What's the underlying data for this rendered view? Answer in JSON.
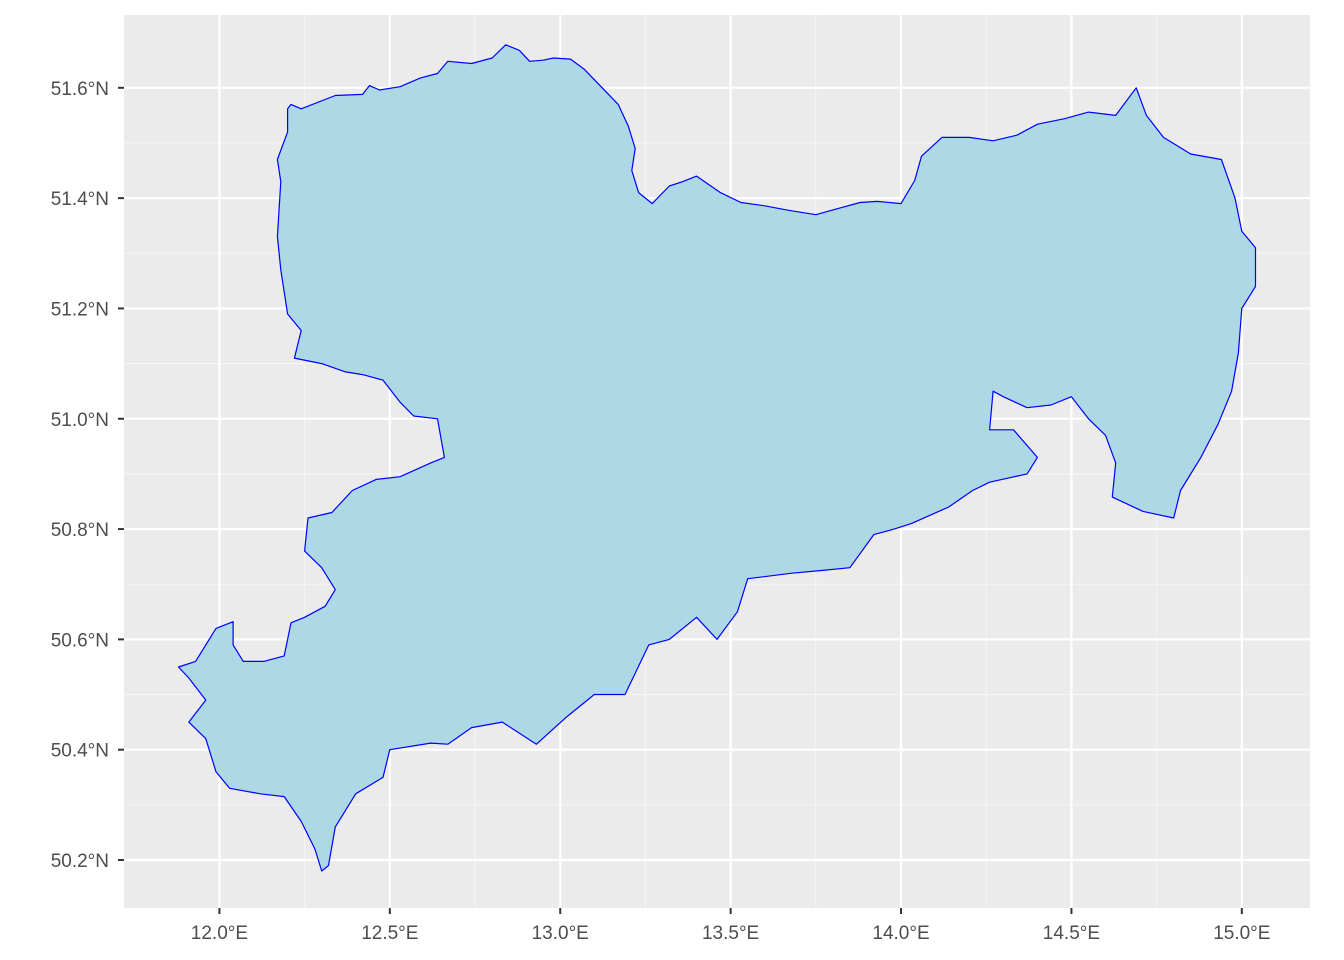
{
  "chart_data": {
    "type": "map",
    "region": "Sachsen",
    "fill_color": "#add8e6",
    "border_color": "#0000ff",
    "panel_color": "#ebebeb",
    "grid": true,
    "x_axis": {
      "unit": "longitude",
      "ticks": [
        12.0,
        12.5,
        13.0,
        13.5,
        14.0,
        14.5,
        15.0
      ],
      "tick_labels": [
        "12.0°E",
        "12.5°E",
        "13.0°E",
        "13.5°E",
        "14.0°E",
        "14.5°E",
        "15.0°E"
      ],
      "range": [
        11.72,
        15.2
      ]
    },
    "y_axis": {
      "unit": "latitude",
      "ticks": [
        50.2,
        50.4,
        50.6,
        50.8,
        51.0,
        51.2,
        51.4,
        51.6
      ],
      "tick_labels": [
        "50.2°N",
        "50.4°N",
        "50.6°N",
        "50.8°N",
        "51.0°N",
        "51.2°N",
        "51.4°N",
        "51.6°N"
      ],
      "range": [
        50.113,
        51.732
      ]
    },
    "outline": [
      [
        12.2,
        51.562
      ],
      [
        12.21,
        51.57
      ],
      [
        12.24,
        51.562
      ],
      [
        12.34,
        51.586
      ],
      [
        12.42,
        51.588
      ],
      [
        12.44,
        51.604
      ],
      [
        12.47,
        51.596
      ],
      [
        12.53,
        51.602
      ],
      [
        12.59,
        51.618
      ],
      [
        12.64,
        51.626
      ],
      [
        12.67,
        51.648
      ],
      [
        12.74,
        51.644
      ],
      [
        12.8,
        51.654
      ],
      [
        12.84,
        51.678
      ],
      [
        12.88,
        51.668
      ],
      [
        12.91,
        51.648
      ],
      [
        12.95,
        51.65
      ],
      [
        12.98,
        51.654
      ],
      [
        13.03,
        51.652
      ],
      [
        13.07,
        51.634
      ],
      [
        13.12,
        51.602
      ],
      [
        13.17,
        51.57
      ],
      [
        13.2,
        51.53
      ],
      [
        13.22,
        51.49
      ],
      [
        13.21,
        51.45
      ],
      [
        13.23,
        51.41
      ],
      [
        13.27,
        51.39
      ],
      [
        13.32,
        51.422
      ],
      [
        13.36,
        51.43
      ],
      [
        13.4,
        51.44
      ],
      [
        13.47,
        51.41
      ],
      [
        13.53,
        51.392
      ],
      [
        13.6,
        51.386
      ],
      [
        13.67,
        51.378
      ],
      [
        13.75,
        51.37
      ],
      [
        13.82,
        51.382
      ],
      [
        13.88,
        51.392
      ],
      [
        13.93,
        51.394
      ],
      [
        14.0,
        51.39
      ],
      [
        14.04,
        51.432
      ],
      [
        14.06,
        51.476
      ],
      [
        14.12,
        51.51
      ],
      [
        14.2,
        51.51
      ],
      [
        14.27,
        51.504
      ],
      [
        14.34,
        51.514
      ],
      [
        14.4,
        51.534
      ],
      [
        14.48,
        51.544
      ],
      [
        14.55,
        51.556
      ],
      [
        14.63,
        51.55
      ],
      [
        14.69,
        51.6
      ],
      [
        14.72,
        51.55
      ],
      [
        14.77,
        51.51
      ],
      [
        14.85,
        51.48
      ],
      [
        14.94,
        51.47
      ],
      [
        14.98,
        51.4
      ],
      [
        15.0,
        51.34
      ],
      [
        15.04,
        51.31
      ],
      [
        15.04,
        51.24
      ],
      [
        15.0,
        51.2
      ],
      [
        14.99,
        51.12
      ],
      [
        14.97,
        51.05
      ],
      [
        14.93,
        50.99
      ],
      [
        14.88,
        50.93
      ],
      [
        14.82,
        50.87
      ],
      [
        14.8,
        50.82
      ],
      [
        14.71,
        50.832
      ],
      [
        14.62,
        50.858
      ],
      [
        14.63,
        50.92
      ],
      [
        14.6,
        50.97
      ],
      [
        14.55,
        51.0
      ],
      [
        14.5,
        51.04
      ],
      [
        14.44,
        51.025
      ],
      [
        14.37,
        51.02
      ],
      [
        14.3,
        51.04
      ],
      [
        14.27,
        51.05
      ],
      [
        14.26,
        50.98
      ],
      [
        14.33,
        50.98
      ],
      [
        14.4,
        50.93
      ],
      [
        14.37,
        50.9
      ],
      [
        14.26,
        50.885
      ],
      [
        14.21,
        50.87
      ],
      [
        14.14,
        50.84
      ],
      [
        14.03,
        50.81
      ],
      [
        13.98,
        50.8
      ],
      [
        13.92,
        50.79
      ],
      [
        13.85,
        50.73
      ],
      [
        13.77,
        50.725
      ],
      [
        13.68,
        50.72
      ],
      [
        13.55,
        50.71
      ],
      [
        13.52,
        50.65
      ],
      [
        13.46,
        50.6
      ],
      [
        13.4,
        50.64
      ],
      [
        13.32,
        50.6
      ],
      [
        13.26,
        50.59
      ],
      [
        13.19,
        50.5
      ],
      [
        13.1,
        50.5
      ],
      [
        13.02,
        50.46
      ],
      [
        12.93,
        50.41
      ],
      [
        12.83,
        50.45
      ],
      [
        12.74,
        50.44
      ],
      [
        12.67,
        50.41
      ],
      [
        12.62,
        50.412
      ],
      [
        12.5,
        50.4
      ],
      [
        12.48,
        50.35
      ],
      [
        12.4,
        50.32
      ],
      [
        12.34,
        50.26
      ],
      [
        12.32,
        50.19
      ],
      [
        12.3,
        50.18
      ],
      [
        12.28,
        50.22
      ],
      [
        12.24,
        50.27
      ],
      [
        12.19,
        50.315
      ],
      [
        12.12,
        50.32
      ],
      [
        12.03,
        50.33
      ],
      [
        11.99,
        50.36
      ],
      [
        11.96,
        50.42
      ],
      [
        11.91,
        50.45
      ],
      [
        11.96,
        50.49
      ],
      [
        11.91,
        50.53
      ],
      [
        11.88,
        50.55
      ],
      [
        11.93,
        50.56
      ],
      [
        11.99,
        50.62
      ],
      [
        12.04,
        50.632
      ],
      [
        12.04,
        50.59
      ],
      [
        12.07,
        50.56
      ],
      [
        12.13,
        50.56
      ],
      [
        12.19,
        50.57
      ],
      [
        12.21,
        50.63
      ],
      [
        12.25,
        50.64
      ],
      [
        12.31,
        50.66
      ],
      [
        12.34,
        50.69
      ],
      [
        12.3,
        50.73
      ],
      [
        12.25,
        50.76
      ],
      [
        12.26,
        50.82
      ],
      [
        12.33,
        50.83
      ],
      [
        12.39,
        50.87
      ],
      [
        12.46,
        50.89
      ],
      [
        12.53,
        50.895
      ],
      [
        12.62,
        50.92
      ],
      [
        12.66,
        50.93
      ],
      [
        12.64,
        51.0
      ],
      [
        12.57,
        51.005
      ],
      [
        12.53,
        51.03
      ],
      [
        12.48,
        51.07
      ],
      [
        12.42,
        51.08
      ],
      [
        12.37,
        51.085
      ],
      [
        12.3,
        51.1
      ],
      [
        12.22,
        51.11
      ],
      [
        12.24,
        51.16
      ],
      [
        12.2,
        51.19
      ],
      [
        12.18,
        51.27
      ],
      [
        12.17,
        51.33
      ],
      [
        12.18,
        51.43
      ],
      [
        12.17,
        51.47
      ],
      [
        12.2,
        51.52
      ],
      [
        12.2,
        51.562
      ]
    ]
  }
}
